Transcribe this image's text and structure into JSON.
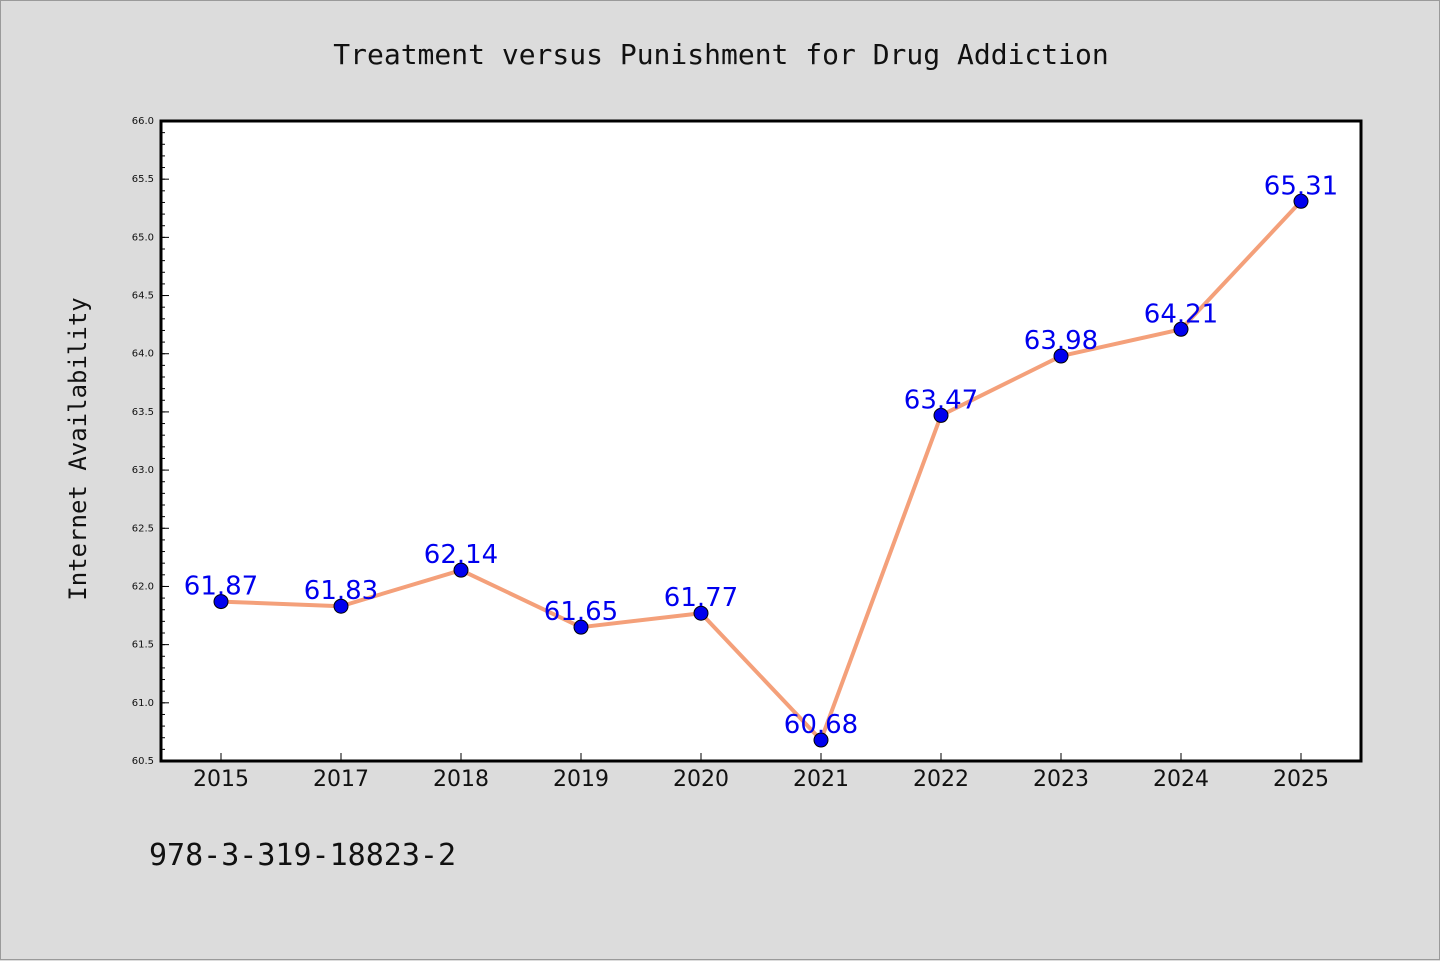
{
  "chart_data": {
    "type": "line",
    "title": "Treatment versus Punishment for Drug Addiction",
    "xlabel": "",
    "ylabel": "Internet Availability",
    "categories": [
      "2015",
      "2017",
      "2018",
      "2019",
      "2020",
      "2021",
      "2022",
      "2023",
      "2024",
      "2025"
    ],
    "series": [
      {
        "values": [
          61.87,
          61.83,
          62.14,
          61.65,
          61.77,
          60.68,
          63.47,
          63.98,
          64.21,
          65.31
        ],
        "labels": [
          "61.87",
          "61.83",
          "62.14",
          "61.65",
          "61.77",
          "60.68",
          "63.47",
          "63.98",
          "64.21",
          "65.31"
        ]
      }
    ],
    "ylim": [
      60.5,
      66.0
    ],
    "yticks": [
      "60.5",
      "61.0",
      "61.5",
      "62.0",
      "62.5",
      "63.0",
      "63.5",
      "64.0",
      "64.5",
      "65.0",
      "65.5",
      "66.0"
    ],
    "grid": false,
    "legend": "none",
    "colors": {
      "line": "#f4a07a",
      "marker": "#0000ee",
      "data_label": "#0000ee",
      "plot_bg": "#ffffff",
      "figure_bg": "#dcdcdc"
    }
  },
  "footer": {
    "isbn": "978-3-319-18823-2"
  }
}
